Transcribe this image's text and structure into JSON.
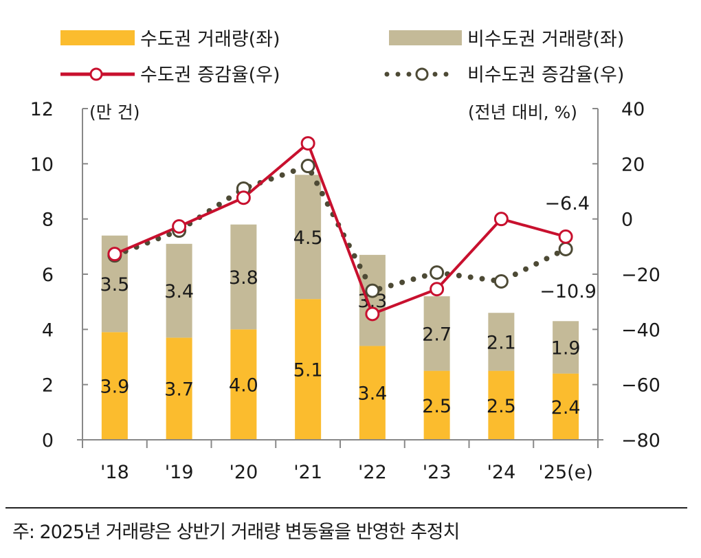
{
  "chart_data": {
    "type": "bar+line",
    "categories": [
      "'18",
      "'19",
      "'20",
      "'21",
      "'22",
      "'23",
      "'24",
      "'25(e)"
    ],
    "left_axis": {
      "unit_label": "(만 건)",
      "range": [
        0,
        12
      ],
      "ticks": [
        0,
        2,
        4,
        6,
        8,
        10,
        12
      ]
    },
    "right_axis": {
      "unit_label": "(전년 대비, %)",
      "range": [
        -80,
        40
      ],
      "ticks": [
        -80,
        -60,
        -40,
        -20,
        0,
        20,
        40
      ]
    },
    "bar_series": [
      {
        "name": "수도권 거래량(좌)",
        "color": "#FBBC2E",
        "values": [
          3.9,
          3.7,
          4.0,
          5.1,
          3.4,
          2.5,
          2.5,
          2.4
        ],
        "stacked": true,
        "axis": "left"
      },
      {
        "name": "비수도권 거래량(좌)",
        "color": "#C4BA98",
        "values": [
          3.5,
          3.4,
          3.8,
          4.5,
          3.3,
          2.7,
          2.1,
          1.9
        ],
        "stacked": true,
        "axis": "left"
      }
    ],
    "line_series": [
      {
        "name": "수도권 증감율(우)",
        "color": "#C8102E",
        "style": "solid",
        "marker": "open-circle",
        "axis": "right",
        "values": [
          -12.7,
          -2.7,
          7.7,
          27.4,
          -34.4,
          -25.4,
          0.0,
          -6.4
        ]
      },
      {
        "name": "비수도권 증감율(우)",
        "color": "#4D4A35",
        "style": "dotted",
        "marker": "open-circle",
        "axis": "right",
        "values": [
          -13.2,
          -4.2,
          11.0,
          19.2,
          -26.0,
          -19.4,
          -22.6,
          -10.9
        ]
      }
    ],
    "annotations": [
      {
        "text": "-6.4",
        "series": "수도권 증감율(우)",
        "category": "'25(e)"
      },
      {
        "text": "-10.9",
        "series": "비수도권 증감율(우)",
        "category": "'25(e)"
      }
    ],
    "legend_placement": "top",
    "grid": false
  },
  "note": "주: 2025년 거래량은 상반기 거래량 변동율을 반영한 추정치"
}
